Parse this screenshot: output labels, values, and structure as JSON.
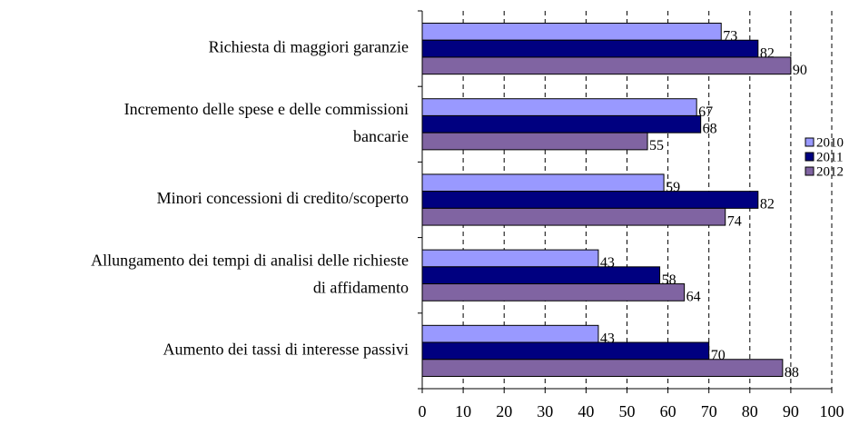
{
  "chart_data": {
    "type": "bar",
    "orientation": "horizontal",
    "categories": [
      [
        "Richiesta di maggiori garanzie"
      ],
      [
        "Incremento delle spese e delle commissioni",
        "bancarie"
      ],
      [
        "Minori concessioni di credito/scoperto"
      ],
      [
        "Allungamento dei tempi di analisi delle richieste",
        "di affidamento"
      ],
      [
        "Aumento dei tassi di interesse passivi"
      ]
    ],
    "series": [
      {
        "name": "2010",
        "color": "#9999ff",
        "values": [
          73,
          67,
          59,
          43,
          43
        ]
      },
      {
        "name": "2011",
        "color": "#000080",
        "values": [
          82,
          68,
          82,
          58,
          70
        ]
      },
      {
        "name": "2012",
        "color": "#8064a2",
        "values": [
          90,
          55,
          74,
          64,
          88
        ]
      }
    ],
    "xlim": [
      0,
      100
    ],
    "xticks": [
      0,
      10,
      20,
      30,
      40,
      50,
      60,
      70,
      80,
      90,
      100
    ],
    "grid": true,
    "legend": "right"
  }
}
